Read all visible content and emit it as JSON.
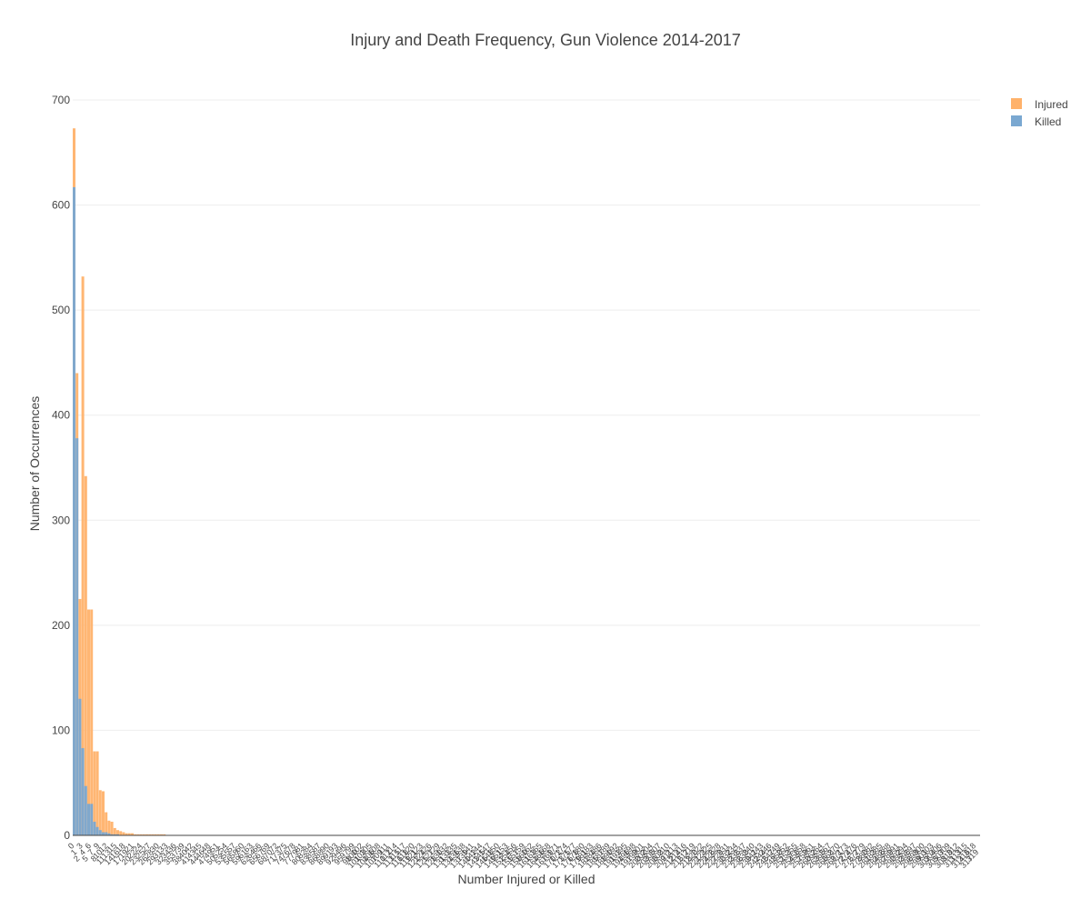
{
  "chart_data": {
    "type": "bar",
    "title": "Injury and Death Frequency, Gun Violence 2014-2017",
    "xlabel": "Number Injured or Killed",
    "ylabel": "Number of Occurrences",
    "ylim": [
      0,
      700
    ],
    "yticks": [
      0,
      100,
      200,
      300,
      400,
      500,
      600,
      700
    ],
    "grid": true,
    "legend_position": "top-right",
    "barmode": "overlay",
    "series": [
      {
        "name": "Injured",
        "color": "#ffb26b",
        "values": [
          673,
          440,
          225,
          532,
          342,
          215,
          215,
          80,
          80,
          43,
          42,
          22,
          14,
          13,
          7,
          5,
          4,
          3,
          2,
          2,
          2,
          1,
          1,
          1,
          1,
          1,
          1,
          1,
          1,
          1,
          1,
          1
        ]
      },
      {
        "name": "Killed",
        "color": "#7aa8d1",
        "values": [
          617,
          378,
          130,
          83,
          47,
          30,
          30,
          13,
          8,
          5,
          3,
          3,
          2,
          1,
          1,
          1
        ]
      }
    ]
  }
}
